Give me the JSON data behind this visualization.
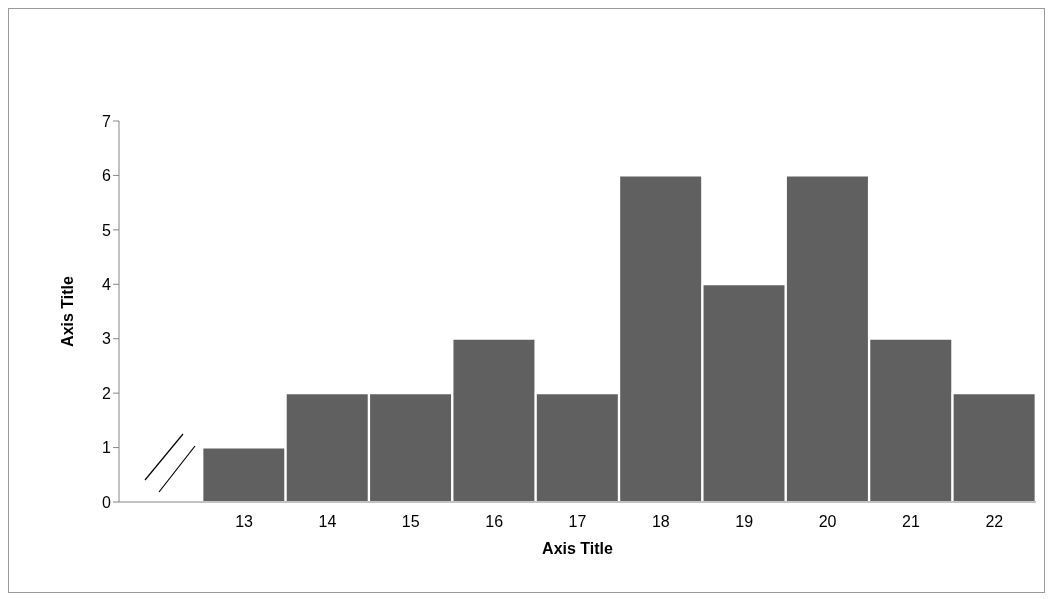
{
  "chart_data": {
    "type": "bar",
    "xlabel": "Axis Title",
    "ylabel": "Axis Title",
    "categories": [
      null,
      "13",
      "14",
      "15",
      "16",
      "17",
      "18",
      "19",
      "20",
      "21",
      "22"
    ],
    "values": [
      null,
      1,
      2,
      2,
      3,
      2,
      6,
      4,
      6,
      3,
      2
    ],
    "color": "#606060",
    "ylim": [
      0,
      7
    ],
    "yticks": [
      0,
      1,
      2,
      3,
      4,
      5,
      6,
      7
    ]
  }
}
